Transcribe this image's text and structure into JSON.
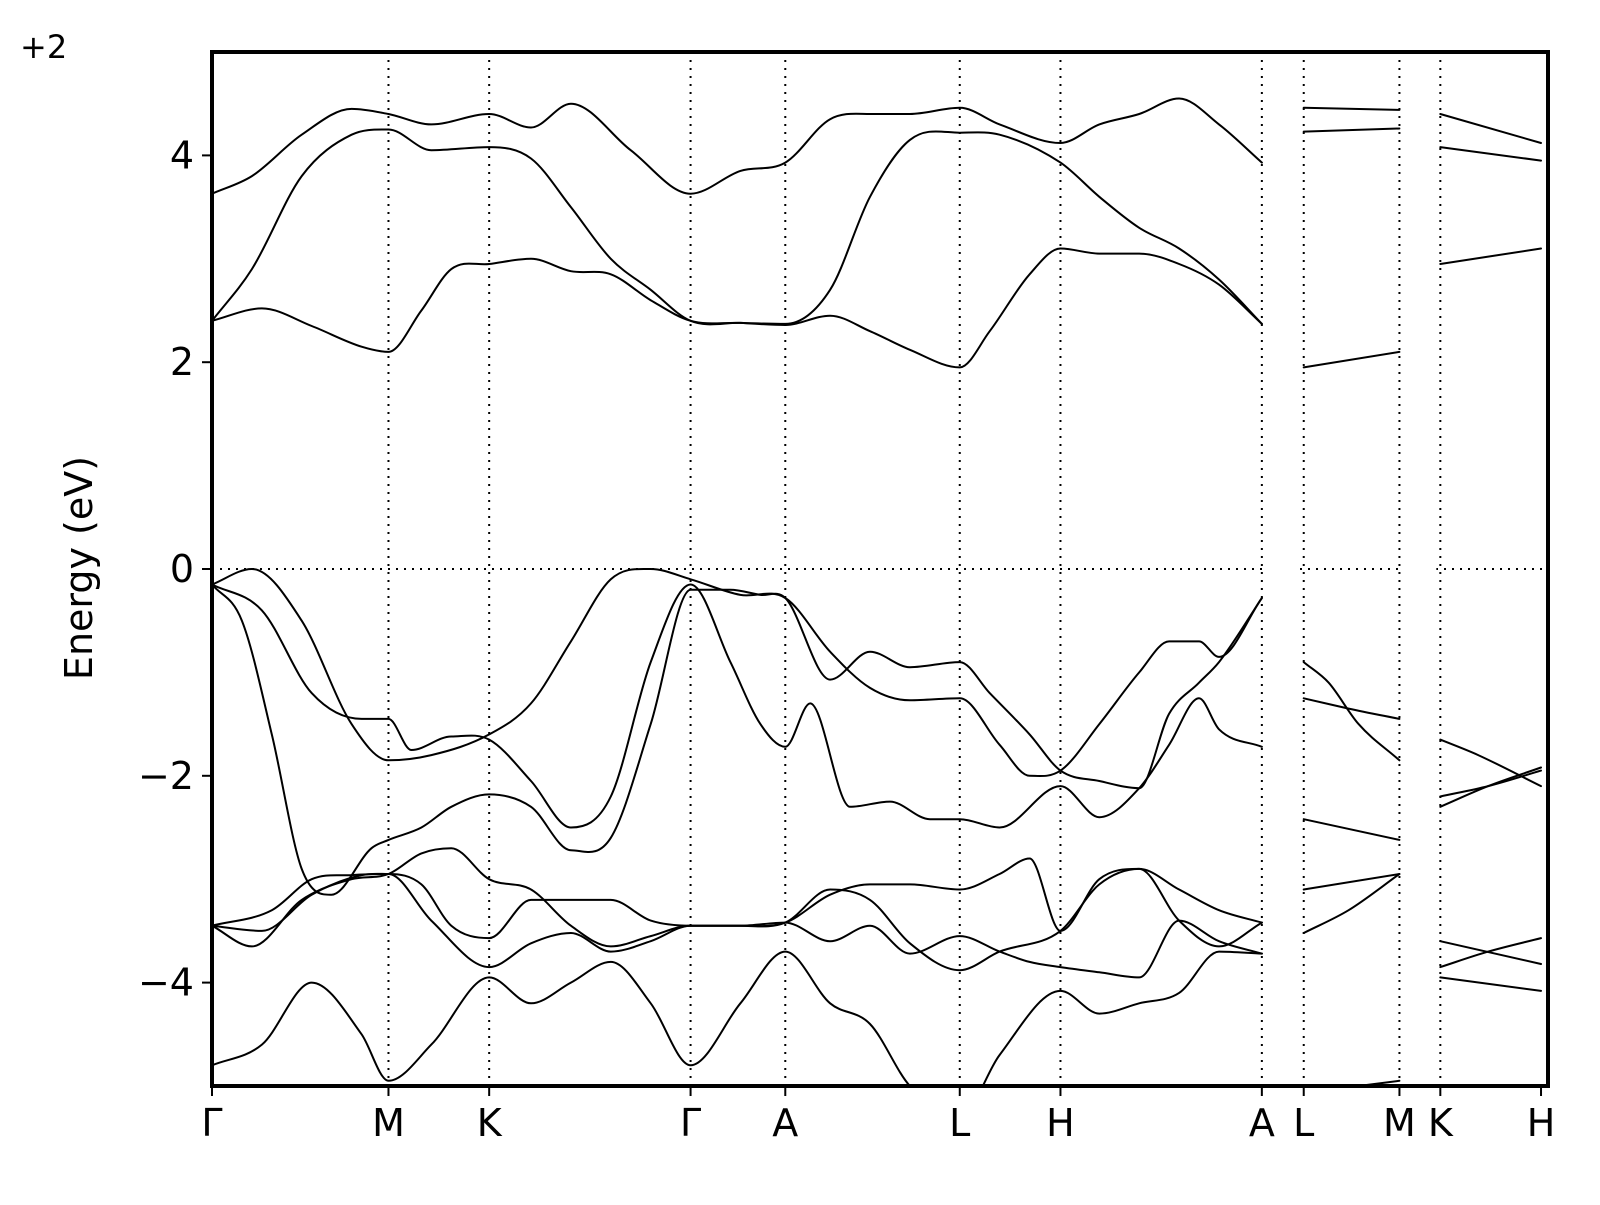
{
  "chart_data": {
    "type": "line",
    "offset_label": "+2",
    "ylabel": "Energy (eV)",
    "ylim": [
      -5,
      5
    ],
    "yticks": [
      -4,
      -2,
      0,
      2,
      4
    ],
    "ytick_labels": [
      "−4",
      "−2",
      "0",
      "2",
      "4"
    ],
    "xlim": [
      0,
      13.4
    ],
    "kpoints": [
      {
        "label": "Γ",
        "x": 0
      },
      {
        "label": "M",
        "x": 1.77
      },
      {
        "label": "K",
        "x": 2.78
      },
      {
        "label": "Γ",
        "x": 4.8
      },
      {
        "label": "A",
        "x": 5.75
      },
      {
        "label": "L",
        "x": 7.5
      },
      {
        "label": "H",
        "x": 8.51
      },
      {
        "label": "A",
        "x": 10.53
      },
      {
        "label": "L",
        "x": 10.95
      },
      {
        "label": "M",
        "x": 11.91
      },
      {
        "label": "K",
        "x": 12.32
      },
      {
        "label": "H",
        "x": 13.33
      }
    ],
    "path_breaks": [
      [
        10.53,
        10.95
      ],
      [
        11.91,
        12.32
      ]
    ],
    "fermi_level": 0,
    "grid": false,
    "series": [
      {
        "segment": "Γ-M-K-Γ-A-L-H-A",
        "x": [
          0,
          0.4,
          0.9,
          1.4,
          1.77,
          2.2,
          2.78,
          3.2,
          3.6,
          4.2,
          4.8,
          5.3,
          5.75,
          6.2,
          6.6,
          7.0,
          7.5,
          7.9,
          8.51,
          8.9,
          9.3,
          9.7,
          10.1,
          10.53
        ],
        "y": [
          3.63,
          3.8,
          4.2,
          4.45,
          4.4,
          4.3,
          4.4,
          4.27,
          4.5,
          4.05,
          3.63,
          3.85,
          3.93,
          4.35,
          4.4,
          4.4,
          4.46,
          4.3,
          4.12,
          4.3,
          4.4,
          4.55,
          4.3,
          3.93
        ]
      },
      {
        "segment": "Γ-M-K-Γ-A-L-H-A",
        "x": [
          0,
          0.4,
          0.9,
          1.4,
          1.77,
          2.2,
          2.78,
          3.2,
          3.6,
          4.0,
          4.4,
          4.8,
          5.3,
          5.75,
          6.2,
          6.6,
          7.0,
          7.5,
          7.9,
          8.51,
          8.9,
          9.3,
          9.7,
          10.1,
          10.53
        ],
        "y": [
          2.4,
          2.9,
          3.8,
          4.2,
          4.25,
          4.05,
          4.08,
          3.97,
          3.5,
          3.0,
          2.7,
          2.4,
          2.38,
          2.37,
          2.7,
          3.6,
          4.15,
          4.22,
          4.2,
          3.93,
          3.6,
          3.3,
          3.1,
          2.8,
          2.37
        ]
      },
      {
        "segment": "Γ-M-K-Γ-A-L-H-A",
        "x": [
          0,
          0.5,
          1.0,
          1.5,
          1.77,
          2.1,
          2.4,
          2.78,
          3.2,
          3.6,
          4.0,
          4.4,
          4.8,
          5.3,
          5.75,
          6.2,
          6.6,
          7.0,
          7.5,
          7.8,
          8.2,
          8.51,
          8.9,
          9.3,
          9.7,
          10.1,
          10.53
        ],
        "y": [
          2.4,
          2.52,
          2.35,
          2.15,
          2.1,
          2.5,
          2.9,
          2.95,
          3.0,
          2.88,
          2.85,
          2.6,
          2.4,
          2.38,
          2.36,
          2.45,
          2.3,
          2.12,
          1.95,
          2.3,
          2.85,
          3.1,
          3.05,
          3.05,
          2.95,
          2.75,
          2.37
        ]
      },
      {
        "segment": "Γ-M-K-Γ-A-L-H-A",
        "x": [
          0,
          0.4,
          0.9,
          1.4,
          1.77,
          2.2,
          2.78,
          3.2,
          3.6,
          4.0,
          4.4,
          4.8,
          5.3,
          5.75,
          6.2,
          6.6,
          7.0,
          7.5,
          7.9,
          8.2,
          8.51,
          8.9,
          9.3,
          9.6,
          9.9,
          10.1,
          10.53
        ],
        "y": [
          -0.15,
          0.0,
          -0.5,
          -1.5,
          -1.85,
          -1.8,
          -1.6,
          -1.3,
          -0.7,
          -0.1,
          0.0,
          -0.1,
          -0.25,
          -0.28,
          -0.8,
          -1.15,
          -1.27,
          -1.25,
          -1.7,
          -2.0,
          -1.95,
          -1.5,
          -1.0,
          -0.7,
          -0.7,
          -0.85,
          -0.28
        ]
      },
      {
        "segment": "Γ-M-K-Γ-A-L-H-A",
        "x": [
          0,
          0.5,
          1.0,
          1.5,
          1.77,
          2.0,
          2.4,
          2.78,
          3.2,
          3.6,
          4.0,
          4.4,
          4.8,
          5.2,
          5.5,
          5.75,
          6.0,
          6.4,
          6.8,
          7.2,
          7.5,
          7.9,
          8.51,
          8.9,
          9.3,
          9.6,
          9.9,
          10.1,
          10.53
        ],
        "y": [
          -0.15,
          -0.4,
          -1.2,
          -1.45,
          -1.45,
          -1.75,
          -1.62,
          -1.65,
          -2.05,
          -2.5,
          -2.2,
          -0.9,
          -0.15,
          -0.9,
          -1.5,
          -1.72,
          -1.3,
          -2.3,
          -2.25,
          -2.42,
          -2.42,
          -2.5,
          -2.1,
          -2.4,
          -2.12,
          -1.7,
          -1.25,
          -1.55,
          -1.72
        ]
      },
      {
        "segment": "Γ-M-K-Γ-A-L-H-A",
        "x": [
          0,
          0.3,
          0.6,
          0.9,
          1.2,
          1.6,
          1.77,
          2.1,
          2.4,
          2.78,
          3.2,
          3.6,
          4.0,
          4.4,
          4.8,
          5.2,
          5.5,
          5.75,
          6.2,
          6.6,
          7.0,
          7.5,
          7.8,
          8.2,
          8.51,
          8.9,
          9.3,
          9.6,
          9.9,
          10.1,
          10.53
        ],
        "y": [
          -0.15,
          -0.5,
          -1.6,
          -2.9,
          -3.15,
          -2.7,
          -2.62,
          -2.5,
          -2.3,
          -2.18,
          -2.3,
          -2.72,
          -2.6,
          -1.5,
          -0.2,
          -0.2,
          -0.25,
          -0.28,
          -1.07,
          -0.8,
          -0.95,
          -0.9,
          -1.2,
          -1.6,
          -1.95,
          -2.05,
          -2.12,
          -1.4,
          -1.1,
          -0.9,
          -0.28
        ]
      },
      {
        "segment": "Γ-M-K-Γ-A-L-H-A",
        "x": [
          0,
          0.6,
          1.0,
          1.4,
          1.77,
          2.1,
          2.4,
          2.78,
          3.2,
          3.6,
          4.0,
          4.4,
          4.8,
          5.3,
          5.75,
          6.2,
          6.6,
          7.0,
          7.5,
          7.9,
          8.2,
          8.51,
          8.9,
          9.3,
          9.7,
          10.1,
          10.53
        ],
        "y": [
          -3.45,
          -3.3,
          -3.0,
          -2.96,
          -2.95,
          -3.05,
          -3.45,
          -3.57,
          -3.2,
          -3.2,
          -3.2,
          -3.4,
          -3.45,
          -3.45,
          -3.42,
          -3.15,
          -3.05,
          -3.05,
          -3.1,
          -2.95,
          -2.8,
          -3.5,
          -3.0,
          -2.9,
          -3.1,
          -3.3,
          -3.42
        ]
      },
      {
        "segment": "Γ-M-K-Γ-A-L-H-A",
        "x": [
          0,
          0.4,
          0.9,
          1.4,
          1.77,
          2.1,
          2.4,
          2.78,
          3.2,
          3.6,
          4.0,
          4.4,
          4.8,
          5.3,
          5.75,
          6.2,
          6.6,
          7.0,
          7.5,
          7.9,
          8.2,
          8.51,
          8.9,
          9.3,
          9.7,
          10.1,
          10.53
        ],
        "y": [
          -3.45,
          -3.65,
          -3.2,
          -3.0,
          -2.95,
          -2.75,
          -2.7,
          -3.0,
          -3.1,
          -3.45,
          -3.65,
          -3.55,
          -3.45,
          -3.45,
          -3.42,
          -3.6,
          -3.45,
          -3.72,
          -3.55,
          -3.7,
          -3.8,
          -3.85,
          -3.9,
          -3.95,
          -3.4,
          -3.6,
          -3.72
        ]
      },
      {
        "segment": "Γ-M-K-Γ-A-L-H-A",
        "x": [
          0,
          0.5,
          1.0,
          1.5,
          1.77,
          2.2,
          2.78,
          3.2,
          3.6,
          4.0,
          4.4,
          4.8,
          5.3,
          5.75,
          6.2,
          6.6,
          7.0,
          7.5,
          7.9,
          8.51,
          8.9,
          9.3,
          9.7,
          10.1,
          10.53
        ],
        "y": [
          -3.45,
          -3.5,
          -3.15,
          -2.96,
          -2.95,
          -3.4,
          -3.85,
          -3.62,
          -3.52,
          -3.7,
          -3.6,
          -3.45,
          -3.45,
          -3.42,
          -3.1,
          -3.2,
          -3.62,
          -3.88,
          -3.7,
          -3.5,
          -3.05,
          -2.9,
          -3.4,
          -3.65,
          -3.42
        ]
      },
      {
        "segment": "Γ-M-K-Γ-A-L-H-A",
        "x": [
          0,
          0.5,
          1.0,
          1.5,
          1.77,
          2.2,
          2.78,
          3.2,
          3.6,
          4.0,
          4.4,
          4.8,
          5.3,
          5.75,
          6.2,
          6.6,
          7.0,
          7.5,
          7.9,
          8.51,
          8.9,
          9.3,
          9.7,
          10.1,
          10.53
        ],
        "y": [
          -4.8,
          -4.6,
          -4.0,
          -4.5,
          -4.95,
          -4.6,
          -3.95,
          -4.2,
          -4.0,
          -3.8,
          -4.2,
          -4.8,
          -4.2,
          -3.7,
          -4.2,
          -4.4,
          -5.0,
          -5.3,
          -4.7,
          -4.08,
          -4.3,
          -4.2,
          -4.1,
          -3.7,
          -3.72
        ]
      },
      {
        "segment": "L-M",
        "x": [
          10.95,
          11.91
        ],
        "y": [
          4.46,
          4.44
        ]
      },
      {
        "segment": "L-M",
        "x": [
          10.95,
          11.91
        ],
        "y": [
          4.23,
          4.26
        ]
      },
      {
        "segment": "L-M",
        "x": [
          10.95,
          11.91
        ],
        "y": [
          1.95,
          2.1
        ]
      },
      {
        "segment": "L-M",
        "x": [
          10.95,
          11.2,
          11.5,
          11.91
        ],
        "y": [
          -0.9,
          -1.1,
          -1.5,
          -1.85
        ]
      },
      {
        "segment": "L-M",
        "x": [
          10.95,
          11.4,
          11.91
        ],
        "y": [
          -1.25,
          -1.35,
          -1.45
        ]
      },
      {
        "segment": "L-M",
        "x": [
          10.95,
          11.91
        ],
        "y": [
          -2.42,
          -2.62
        ]
      },
      {
        "segment": "L-M",
        "x": [
          10.95,
          11.91
        ],
        "y": [
          -3.1,
          -2.95
        ]
      },
      {
        "segment": "L-M",
        "x": [
          10.95,
          11.4,
          11.91
        ],
        "y": [
          -3.52,
          -3.3,
          -2.95
        ]
      },
      {
        "segment": "L-M",
        "x": [
          11.5,
          11.91
        ],
        "y": [
          -5.0,
          -4.95
        ]
      },
      {
        "segment": "K-H",
        "x": [
          12.32,
          13.33
        ],
        "y": [
          4.4,
          4.12
        ]
      },
      {
        "segment": "K-H",
        "x": [
          12.32,
          13.33
        ],
        "y": [
          4.08,
          3.95
        ]
      },
      {
        "segment": "K-H",
        "x": [
          12.32,
          13.33
        ],
        "y": [
          2.95,
          3.1
        ]
      },
      {
        "segment": "K-H",
        "x": [
          12.32,
          12.7,
          13.33
        ],
        "y": [
          -1.65,
          -1.8,
          -2.1
        ]
      },
      {
        "segment": "K-H",
        "x": [
          12.32,
          12.8,
          13.33
        ],
        "y": [
          -2.2,
          -2.1,
          -1.95
        ]
      },
      {
        "segment": "K-H",
        "x": [
          12.32,
          12.8,
          13.33
        ],
        "y": [
          -2.3,
          -2.1,
          -1.92
        ]
      },
      {
        "segment": "K-H",
        "x": [
          12.32,
          13.33
        ],
        "y": [
          -3.6,
          -3.82
        ]
      },
      {
        "segment": "K-H",
        "x": [
          12.32,
          12.8,
          13.33
        ],
        "y": [
          -3.85,
          -3.7,
          -3.57
        ]
      },
      {
        "segment": "K-H",
        "x": [
          12.32,
          13.33
        ],
        "y": [
          -3.95,
          -4.08
        ]
      }
    ]
  }
}
